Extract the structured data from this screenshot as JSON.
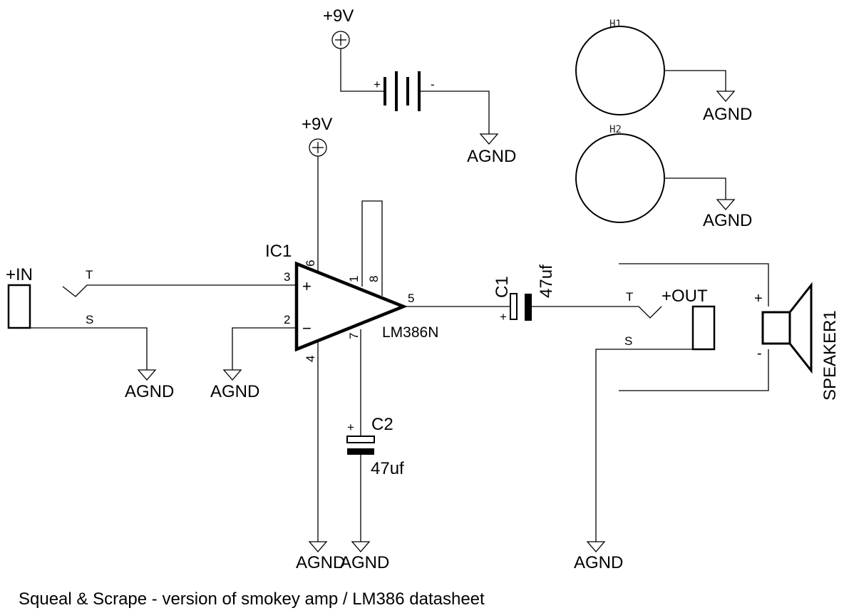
{
  "power": {
    "battery_supply_label": "+9V",
    "ic_supply_label": "+9V"
  },
  "battery": {
    "plus": "+",
    "minus": "-"
  },
  "ground_label": "AGND",
  "mounting_holes": {
    "h1": "H1",
    "h2": "H2"
  },
  "input_jack": {
    "label": "+IN",
    "tip": "T",
    "sleeve": "S"
  },
  "ic": {
    "ref": "IC1",
    "part": "LM386N",
    "plus_sign": "+",
    "minus_sign": "−",
    "pins": {
      "p1": "1",
      "p2": "2",
      "p3": "3",
      "p4": "4",
      "p5": "5",
      "p6": "6",
      "p7": "7",
      "p8": "8"
    }
  },
  "c1": {
    "ref": "C1",
    "value": "47uf",
    "plus": "+"
  },
  "c2": {
    "ref": "C2",
    "value": "47uf",
    "plus": "+"
  },
  "output_jack": {
    "label": "+OUT",
    "tip": "T",
    "sleeve": "S"
  },
  "speaker": {
    "ref": "SPEAKER1",
    "plus": "+",
    "minus": "-"
  },
  "caption": "Squeal & Scrape - version of smokey amp / LM386 datasheet"
}
